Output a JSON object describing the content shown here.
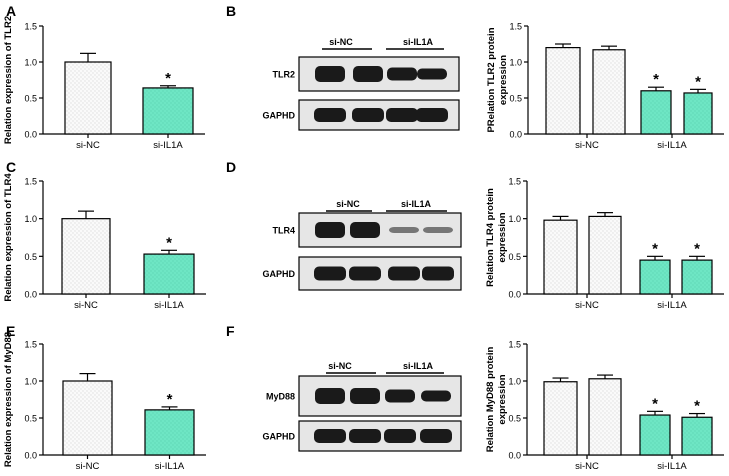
{
  "colors": {
    "control_fill": "#fafafa",
    "treatment_fill": "#6ee6c4",
    "axis": "#000000",
    "blot_bg": "#e6e6e6",
    "band": "#1a1a1a"
  },
  "panels": [
    {
      "letter": "A",
      "type": "bar",
      "ylabel": "Relation expression of TLR2",
      "ylim": [
        0,
        1.5
      ],
      "yticks": [
        "0.0",
        "0.5",
        "1.0",
        "1.5"
      ],
      "categories": [
        "si-NC",
        "si-IL1A"
      ],
      "values": [
        1.0,
        0.64
      ],
      "errors": [
        0.12,
        0.03
      ],
      "significance": [
        "",
        "*"
      ]
    },
    {
      "letter": "B",
      "type": "blot",
      "groups": [
        "si-NC",
        "si-IL1A"
      ],
      "rows": [
        "TLR2",
        "GAPHD"
      ]
    },
    {
      "type": "bar",
      "ylabel_lines": [
        "PRelation TLR2 protein",
        "expression"
      ],
      "ylim": [
        0,
        1.5
      ],
      "yticks": [
        "0.0",
        "0.5",
        "1.0",
        "1.5"
      ],
      "group_labels": [
        "si-NC",
        "si-IL1A"
      ],
      "values": [
        1.2,
        1.17,
        0.6,
        0.57
      ],
      "errors": [
        0.05,
        0.05,
        0.05,
        0.05
      ],
      "significance": [
        "",
        "",
        "*",
        "*"
      ]
    },
    {
      "letter": "C",
      "type": "bar",
      "ylabel": "Relation expression of TLR4",
      "ylim": [
        0,
        1.5
      ],
      "yticks": [
        "0.0",
        "0.5",
        "1.0",
        "1.5"
      ],
      "categories": [
        "si-NC",
        "si-IL1A"
      ],
      "values": [
        1.0,
        0.53
      ],
      "errors": [
        0.1,
        0.05
      ],
      "significance": [
        "",
        "*"
      ]
    },
    {
      "letter": "D",
      "type": "blot",
      "groups": [
        "si-NC",
        "si-IL1A"
      ],
      "rows": [
        "TLR4",
        "GAPHD"
      ]
    },
    {
      "type": "bar",
      "ylabel_lines": [
        "Relation TLR4 protein",
        "expression"
      ],
      "ylim": [
        0,
        1.5
      ],
      "yticks": [
        "0.0",
        "0.5",
        "1.0",
        "1.5"
      ],
      "group_labels": [
        "si-NC",
        "si-IL1A"
      ],
      "values": [
        0.98,
        1.03,
        0.45,
        0.45
      ],
      "errors": [
        0.05,
        0.05,
        0.05,
        0.05
      ],
      "significance": [
        "",
        "",
        "*",
        "*"
      ]
    },
    {
      "letter": "E",
      "type": "bar",
      "ylabel": "Relation expression of MyD88",
      "ylim": [
        0,
        1.5
      ],
      "yticks": [
        "0.0",
        "0.5",
        "1.0",
        "1.5"
      ],
      "categories": [
        "si-NC",
        "si-IL1A"
      ],
      "values": [
        1.0,
        0.61
      ],
      "errors": [
        0.1,
        0.04
      ],
      "significance": [
        "",
        "*"
      ]
    },
    {
      "letter": "F",
      "type": "blot",
      "groups": [
        "si-NC",
        "si-IL1A"
      ],
      "rows": [
        "MyD88",
        "GAPHD"
      ]
    },
    {
      "type": "bar",
      "ylabel_lines": [
        "Relation MyD88 protein",
        "expression"
      ],
      "ylim": [
        0,
        1.5
      ],
      "yticks": [
        "0.0",
        "0.5",
        "1.0",
        "1.5"
      ],
      "group_labels": [
        "si-NC",
        "si-IL1A"
      ],
      "values": [
        0.99,
        1.03,
        0.54,
        0.51
      ],
      "errors": [
        0.05,
        0.05,
        0.05,
        0.05
      ],
      "significance": [
        "",
        "",
        "*",
        "*"
      ]
    }
  ],
  "chart_data": [
    {
      "type": "bar",
      "ylabel": "Relation expression of TLR2",
      "categories": [
        "si-NC",
        "si-IL1A"
      ],
      "series": [
        {
          "values": [
            1.0,
            0.64
          ]
        }
      ],
      "ylim": [
        0,
        1.5
      ]
    },
    {
      "type": "bar",
      "ylabel": "PRelation TLR2 protein expression",
      "categories": [
        "si-NC",
        "si-NC",
        "si-IL1A",
        "si-IL1A"
      ],
      "series": [
        {
          "values": [
            1.2,
            1.17,
            0.6,
            0.57
          ]
        }
      ],
      "ylim": [
        0,
        1.5
      ]
    },
    {
      "type": "bar",
      "ylabel": "Relation expression of TLR4",
      "categories": [
        "si-NC",
        "si-IL1A"
      ],
      "series": [
        {
          "values": [
            1.0,
            0.53
          ]
        }
      ],
      "ylim": [
        0,
        1.5
      ]
    },
    {
      "type": "bar",
      "ylabel": "Relation TLR4 protein expression",
      "categories": [
        "si-NC",
        "si-NC",
        "si-IL1A",
        "si-IL1A"
      ],
      "series": [
        {
          "values": [
            0.98,
            1.03,
            0.45,
            0.45
          ]
        }
      ],
      "ylim": [
        0,
        1.5
      ]
    },
    {
      "type": "bar",
      "ylabel": "Relation expression of MyD88",
      "categories": [
        "si-NC",
        "si-IL1A"
      ],
      "series": [
        {
          "values": [
            1.0,
            0.61
          ]
        }
      ],
      "ylim": [
        0,
        1.5
      ]
    },
    {
      "type": "bar",
      "ylabel": "Relation MyD88 protein expression",
      "categories": [
        "si-NC",
        "si-NC",
        "si-IL1A",
        "si-IL1A"
      ],
      "series": [
        {
          "values": [
            0.99,
            1.03,
            0.54,
            0.51
          ]
        }
      ],
      "ylim": [
        0,
        1.5
      ]
    }
  ]
}
